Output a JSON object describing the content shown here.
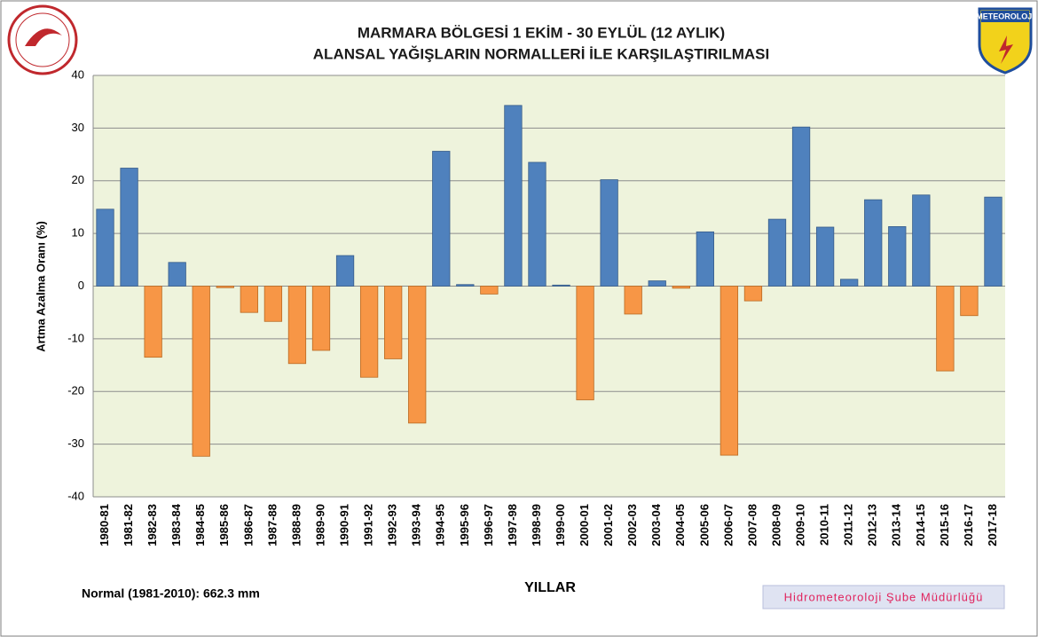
{
  "chart_data": {
    "type": "bar",
    "title": "MARMARA BÖLGESİ  1 EKİM - 30 EYLÜL (12 AYLIK)",
    "subtitle": "ALANSAL YAĞIŞLARIN NORMALLERİ İLE KARŞILAŞTIRILMASI",
    "y_label": "Artma Azalma Oranı (%)",
    "x_label": "YILLAR",
    "note": "Normal (1981-2010): 662.3 mm",
    "footer": "Hidrometeoroloji Şube Müdürlüğü",
    "logo_text": "METEOROLOJİ",
    "categories": [
      "1980-81",
      "1981-82",
      "1982-83",
      "1983-84",
      "1984-85",
      "1985-86",
      "1986-87",
      "1987-88",
      "1988-89",
      "1989-90",
      "1990-91",
      "1991-92",
      "1992-93",
      "1993-94",
      "1994-95",
      "1995-96",
      "1996-97",
      "1997-98",
      "1998-99",
      "1999-00",
      "2000-01",
      "2001-02",
      "2002-03",
      "2003-04",
      "2004-05",
      "2005-06",
      "2006-07",
      "2007-08",
      "2008-09",
      "2009-10",
      "2010-11",
      "2011-12",
      "2012-13",
      "2013-14",
      "2014-15",
      "2015-16",
      "2016-17",
      "2017-18"
    ],
    "values": [
      14.6,
      22.4,
      -13.5,
      4.5,
      -32.3,
      -0.3,
      -5.0,
      -6.7,
      -14.7,
      -12.2,
      5.8,
      -17.3,
      -13.8,
      -26.0,
      25.6,
      0.3,
      -1.5,
      34.3,
      23.5,
      0.2,
      -21.6,
      20.2,
      -5.3,
      1.0,
      -0.4,
      10.3,
      -32.1,
      -2.8,
      12.7,
      30.2,
      11.2,
      1.3,
      16.4,
      11.3,
      17.3,
      -16.1,
      -5.6,
      16.9
    ],
    "positive_color": "#4f81bd",
    "negative_color": "#f79646",
    "ylim": [
      -40,
      40
    ],
    "yticks": [
      -40,
      -30,
      -20,
      -10,
      0,
      10,
      20,
      30,
      40
    ],
    "grid": true
  }
}
